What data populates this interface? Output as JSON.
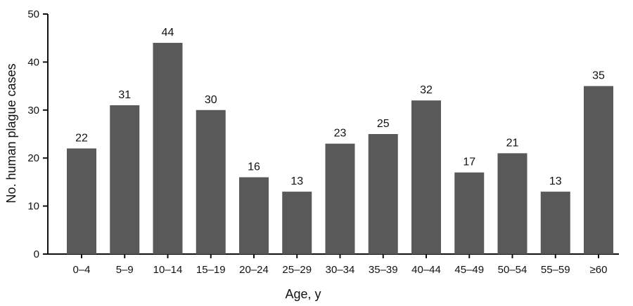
{
  "chart_data": {
    "type": "bar",
    "xlabel": "Age, y",
    "ylabel": "No. human plague cases",
    "ylim": [
      0,
      50
    ],
    "yticks": [
      0,
      10,
      20,
      30,
      40,
      50
    ],
    "grid": false,
    "bar_color": "#595959",
    "categories": [
      "0–4",
      "5–9",
      "10–14",
      "15–19",
      "20–24",
      "25–29",
      "30–34",
      "35–39",
      "40–44",
      "45–49",
      "50–54",
      "55–59",
      "≥60"
    ],
    "values": [
      22,
      31,
      44,
      30,
      16,
      13,
      23,
      25,
      32,
      17,
      21,
      13,
      35
    ],
    "value_labels": [
      "22",
      "31",
      "44",
      "30",
      "16",
      "13",
      "23",
      "25",
      "32",
      "17",
      "21",
      "13",
      "35"
    ]
  }
}
